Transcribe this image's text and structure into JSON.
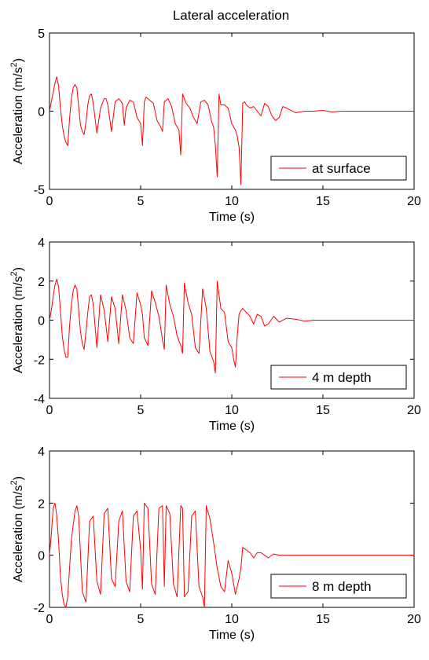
{
  "figure": {
    "title": "Lateral acceleration",
    "xlabel": "Time (s)",
    "ylabel_main": "Acceleration (m/s",
    "ylabel_sup": "2",
    "ylabel_close": ")",
    "line_color": "#ff0000"
  },
  "chart_data": [
    {
      "type": "line",
      "title": "Lateral acceleration",
      "xlabel": "Time (s)",
      "ylabel": "Acceleration (m/s2)",
      "xlim": [
        0,
        20
      ],
      "ylim": [
        -5,
        5
      ],
      "xticks": [
        0,
        5,
        10,
        15,
        20
      ],
      "yticks": [
        -5,
        0,
        5
      ],
      "grid": false,
      "legend_position": "bottom-right",
      "series": [
        {
          "name": "at surface",
          "x": [
            0,
            0.1,
            0.2,
            0.3,
            0.4,
            0.5,
            0.6,
            0.7,
            0.8,
            0.9,
            1.0,
            1.1,
            1.2,
            1.3,
            1.4,
            1.5,
            1.6,
            1.7,
            1.8,
            1.9,
            2.0,
            2.1,
            2.2,
            2.3,
            2.4,
            2.6,
            2.8,
            3.0,
            3.1,
            3.2,
            3.4,
            3.6,
            3.8,
            4.0,
            4.1,
            4.2,
            4.4,
            4.6,
            4.8,
            5.0,
            5.1,
            5.2,
            5.3,
            5.5,
            5.7,
            5.9,
            6.1,
            6.2,
            6.3,
            6.5,
            6.7,
            6.9,
            7.1,
            7.2,
            7.3,
            7.5,
            7.7,
            7.9,
            8.1,
            8.3,
            8.5,
            8.7,
            8.9,
            9.0,
            9.1,
            9.2,
            9.3,
            9.4,
            9.6,
            9.8,
            10.0,
            10.2,
            10.3,
            10.4,
            10.5,
            10.6,
            10.7,
            10.8,
            11.0,
            11.2,
            11.4,
            11.6,
            11.8,
            12.0,
            12.2,
            12.4,
            12.6,
            12.8,
            13.0,
            13.5,
            14.0,
            14.5,
            15.0,
            15.5,
            16.0,
            16.5,
            17.0,
            18.0,
            19.0,
            20.0
          ],
          "y": [
            0,
            0.6,
            1.2,
            1.8,
            2.2,
            1.6,
            0.2,
            -0.9,
            -1.6,
            -2.0,
            -2.2,
            -0.5,
            0.8,
            1.5,
            1.7,
            1.5,
            0.3,
            -0.9,
            -1.3,
            -1.5,
            -0.7,
            0.4,
            1.0,
            1.1,
            0.5,
            -1.4,
            0.2,
            0.8,
            0.8,
            0.4,
            -1.3,
            0.6,
            0.8,
            0.5,
            -0.9,
            0.2,
            0.7,
            0.6,
            -0.4,
            -0.8,
            -2.2,
            0.6,
            0.9,
            0.7,
            0.5,
            -0.6,
            -1.0,
            -1.3,
            0.6,
            0.8,
            0.3,
            -0.8,
            -1.2,
            -2.8,
            1.1,
            0.5,
            0.2,
            -0.4,
            -0.8,
            0.6,
            0.7,
            0.4,
            -0.7,
            -1.0,
            -2.2,
            -4.2,
            1.1,
            0.4,
            0.4,
            0.2,
            -0.8,
            -1.2,
            -1.6,
            -2.3,
            -4.7,
            0.5,
            0.6,
            0.4,
            0.2,
            0.3,
            0.0,
            -0.3,
            0.5,
            0.3,
            -0.3,
            -0.6,
            -0.4,
            0.3,
            0.2,
            -0.1,
            0.0,
            0.0,
            0.05,
            -0.05,
            0.0,
            0.0,
            0.0,
            0.0,
            0.0,
            0.0
          ]
        }
      ]
    },
    {
      "type": "line",
      "title": "",
      "xlabel": "Time (s)",
      "ylabel": "Acceleration (m/s2)",
      "xlim": [
        0,
        20
      ],
      "ylim": [
        -4,
        4
      ],
      "xticks": [
        0,
        5,
        10,
        15,
        20
      ],
      "yticks": [
        -4,
        -2,
        0,
        2,
        4
      ],
      "grid": false,
      "legend_position": "bottom-right",
      "series": [
        {
          "name": "4 m depth",
          "x": [
            0,
            0.1,
            0.2,
            0.3,
            0.4,
            0.5,
            0.6,
            0.7,
            0.8,
            0.9,
            1.0,
            1.1,
            1.2,
            1.3,
            1.4,
            1.5,
            1.6,
            1.7,
            1.8,
            1.9,
            2.0,
            2.1,
            2.2,
            2.3,
            2.4,
            2.6,
            2.8,
            3.0,
            3.2,
            3.4,
            3.6,
            3.8,
            4.0,
            4.2,
            4.4,
            4.6,
            4.8,
            5.0,
            5.1,
            5.2,
            5.4,
            5.6,
            5.8,
            6.0,
            6.2,
            6.3,
            6.4,
            6.6,
            6.8,
            7.0,
            7.2,
            7.3,
            7.4,
            7.6,
            7.8,
            8.0,
            8.2,
            8.4,
            8.6,
            8.8,
            9.0,
            9.1,
            9.2,
            9.4,
            9.6,
            9.8,
            10.0,
            10.1,
            10.2,
            10.3,
            10.4,
            10.5,
            10.6,
            10.8,
            11.0,
            11.2,
            11.4,
            11.6,
            11.8,
            12.0,
            12.3,
            12.6,
            13.0,
            13.5,
            14.0,
            14.5,
            15.0,
            15.5,
            16.0,
            16.5,
            17.0,
            18.0,
            19.0,
            20.0
          ],
          "y": [
            0,
            0.5,
            1.2,
            1.8,
            2.1,
            1.7,
            0.5,
            -0.8,
            -1.5,
            -1.9,
            -1.9,
            -0.3,
            0.8,
            1.5,
            1.8,
            1.6,
            0.5,
            -0.6,
            -1.2,
            -1.5,
            -0.6,
            0.4,
            1.2,
            1.3,
            0.8,
            -1.4,
            1.3,
            0.5,
            -1.1,
            1.2,
            0.6,
            -1.2,
            1.3,
            0.5,
            -0.9,
            -1.2,
            1.4,
            0.8,
            0.3,
            -0.9,
            -1.3,
            1.5,
            0.9,
            0.2,
            -1.0,
            -1.5,
            1.8,
            0.8,
            0.2,
            -0.8,
            -1.3,
            -1.7,
            1.9,
            0.9,
            0.3,
            -1.4,
            -1.7,
            1.6,
            0.6,
            -1.6,
            -2.1,
            -2.7,
            2.0,
            0.6,
            0.4,
            -1.1,
            -1.4,
            -2.0,
            -2.4,
            -0.8,
            0.3,
            0.5,
            0.6,
            0.4,
            0.2,
            -0.2,
            0.3,
            0.2,
            -0.3,
            -0.2,
            0.2,
            -0.1,
            0.1,
            0.05,
            -0.05,
            0.0,
            0.0,
            0.0,
            0.0,
            0.0,
            0.0,
            0.0,
            0.0,
            0.0
          ]
        }
      ]
    },
    {
      "type": "line",
      "title": "",
      "xlabel": "Time (s)",
      "ylabel": "Acceleration (m/s2)",
      "xlim": [
        0,
        20
      ],
      "ylim": [
        -2,
        4
      ],
      "xticks": [
        0,
        5,
        10,
        15,
        20
      ],
      "yticks": [
        -2,
        0,
        2,
        4
      ],
      "grid": false,
      "legend_position": "bottom-right",
      "series": [
        {
          "name": "8 m depth",
          "x": [
            0,
            0.1,
            0.2,
            0.3,
            0.4,
            0.5,
            0.6,
            0.7,
            0.8,
            0.9,
            1.0,
            1.2,
            1.4,
            1.5,
            1.6,
            1.8,
            2.0,
            2.2,
            2.4,
            2.6,
            2.8,
            3.0,
            3.2,
            3.4,
            3.6,
            3.8,
            4.0,
            4.2,
            4.4,
            4.6,
            4.8,
            5.0,
            5.1,
            5.2,
            5.4,
            5.6,
            5.8,
            6.0,
            6.2,
            6.3,
            6.4,
            6.6,
            6.8,
            7.0,
            7.2,
            7.3,
            7.4,
            7.6,
            7.8,
            8.0,
            8.2,
            8.4,
            8.5,
            8.6,
            8.8,
            9.0,
            9.2,
            9.4,
            9.6,
            9.8,
            10.0,
            10.2,
            10.4,
            10.5,
            10.6,
            10.8,
            11.0,
            11.2,
            11.4,
            11.6,
            11.8,
            12.0,
            12.3,
            12.6,
            13.0,
            13.5,
            14.0,
            14.5,
            15.0,
            16.0,
            17.0,
            18.0,
            19.0,
            20.0
          ],
          "y": [
            0,
            0.8,
            1.8,
            2.0,
            1.5,
            0.5,
            -0.8,
            -1.5,
            -1.9,
            -2.0,
            -1.6,
            0.6,
            1.7,
            1.9,
            1.5,
            -1.4,
            -1.8,
            1.3,
            1.5,
            -1.0,
            -1.5,
            1.6,
            1.8,
            -0.9,
            -1.2,
            1.3,
            1.7,
            -1.0,
            -1.4,
            1.5,
            1.7,
            0.2,
            -1.3,
            2.0,
            1.8,
            -1.1,
            -1.5,
            1.8,
            1.9,
            -1.2,
            1.9,
            1.6,
            -1.1,
            -1.6,
            1.9,
            1.8,
            -1.6,
            -1.4,
            1.5,
            1.7,
            -1.2,
            -1.6,
            -2.0,
            1.9,
            1.4,
            0.5,
            -0.5,
            -1.2,
            -1.4,
            -0.2,
            -0.7,
            -1.5,
            -0.9,
            -0.5,
            0.3,
            0.2,
            0.1,
            -0.1,
            0.1,
            0.1,
            0.0,
            -0.1,
            0.05,
            0.0,
            0.0,
            0.0,
            0.0,
            0.0,
            0.0,
            0.0,
            0.0,
            0.0,
            0.0,
            0.0
          ]
        }
      ]
    }
  ]
}
